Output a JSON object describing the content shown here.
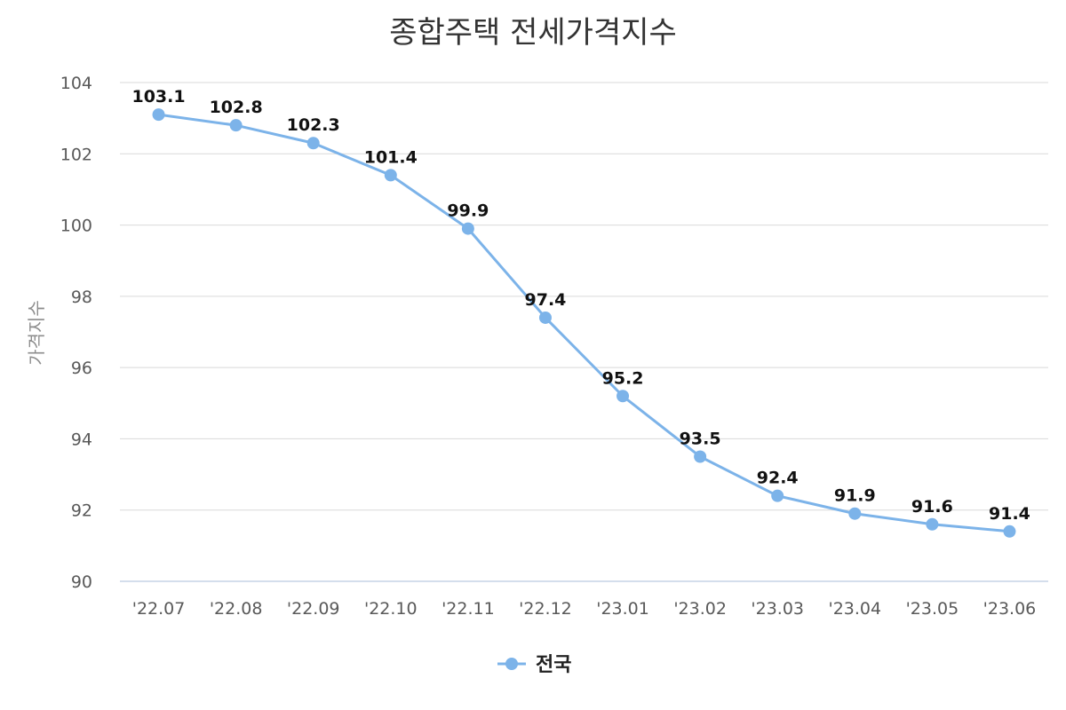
{
  "chart_data": {
    "type": "line",
    "title": "종합주택 전세가격지수",
    "ylabel": "가격지수",
    "xlabel": "",
    "categories": [
      "'22.07",
      "'22.08",
      "'22.09",
      "'22.10",
      "'22.11",
      "'22.12",
      "'23.01",
      "'23.02",
      "'23.03",
      "'23.04",
      "'23.05",
      "'23.06"
    ],
    "series": [
      {
        "name": "전국",
        "values": [
          103.1,
          102.8,
          102.3,
          101.4,
          99.9,
          97.4,
          95.2,
          93.5,
          92.4,
          91.9,
          91.6,
          91.4
        ],
        "labels": [
          "103.1",
          "102.8",
          "102.3",
          "101.4",
          "99.9",
          "97.4",
          "95.2",
          "93.5",
          "92.4",
          "91.9",
          "91.6",
          "91.4"
        ],
        "color": "#7cb3e9"
      }
    ],
    "ylim": [
      90,
      104
    ],
    "yticks": [
      "90",
      "92",
      "94",
      "96",
      "98",
      "100",
      "102",
      "104"
    ],
    "grid": true,
    "legend": "bottom-center"
  }
}
